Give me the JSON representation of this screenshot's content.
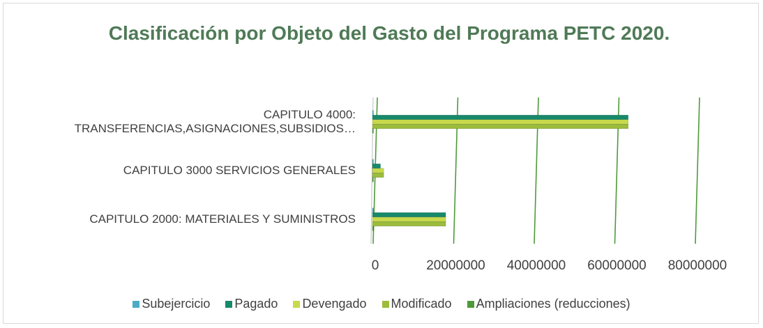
{
  "chart_data": {
    "type": "bar",
    "orientation": "horizontal",
    "title": "Clasificación por Objeto del Gasto del Programa PETC 2020.",
    "categories": [
      "CAPITULO 2000: MATERIALES Y SUMINISTROS",
      "CAPITULO 3000 SERVICIOS GENERALES",
      "CAPITULO 4000: TRANSFERENCIAS,ASIGNACIONES,SUBSIDIOS…"
    ],
    "series": [
      {
        "name": "Subejercicio",
        "color": "#4bacc6",
        "values": [
          100000,
          100000,
          100000
        ]
      },
      {
        "name": "Pagado",
        "color": "#178a6c",
        "values": [
          18200000,
          2000000,
          63500000
        ]
      },
      {
        "name": "Devengado",
        "color": "#c7d94c",
        "values": [
          18200000,
          2800000,
          63500000
        ]
      },
      {
        "name": "Modificado",
        "color": "#9cbc3c",
        "values": [
          18200000,
          2800000,
          63500000
        ]
      },
      {
        "name": "Ampliaciones (reducciones)",
        "color": "#4e9a3a",
        "values": [
          0,
          0,
          0
        ]
      }
    ],
    "xlim": [
      0,
      80000000
    ],
    "xticks": [
      0,
      20000000,
      40000000,
      60000000,
      80000000
    ],
    "grid": true,
    "legend": "bottom"
  }
}
